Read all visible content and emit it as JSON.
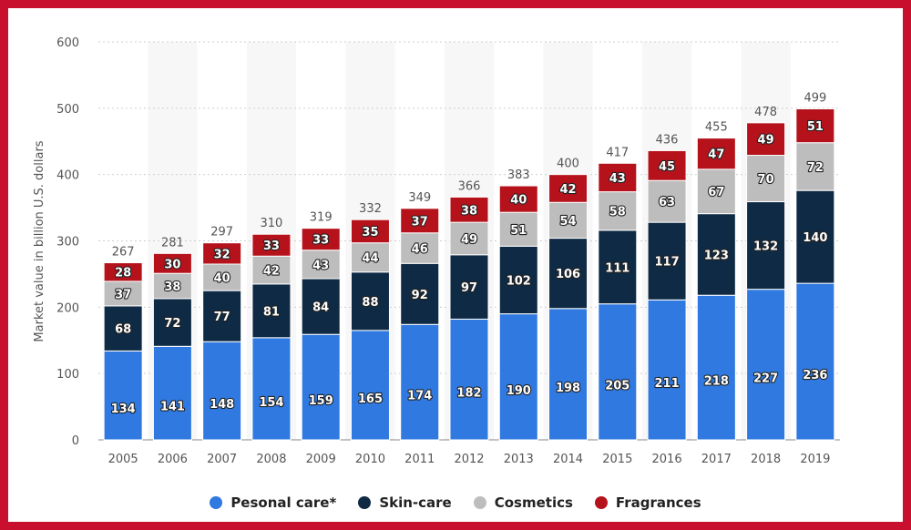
{
  "chart_data": {
    "type": "bar",
    "stacked": true,
    "categories": [
      "2005",
      "2006",
      "2007",
      "2008",
      "2009",
      "2010",
      "2011",
      "2012",
      "2013",
      "2014",
      "2015",
      "2016",
      "2017",
      "2018",
      "2019"
    ],
    "series": [
      {
        "name": "Pesonal care*",
        "color": "#2f79e0",
        "values": [
          134,
          141,
          148,
          154,
          159,
          165,
          174,
          182,
          190,
          198,
          205,
          211,
          218,
          227,
          236
        ]
      },
      {
        "name": "Skin-care",
        "color": "#0f2a44",
        "values": [
          68,
          72,
          77,
          81,
          84,
          88,
          92,
          97,
          102,
          106,
          111,
          117,
          123,
          132,
          140
        ]
      },
      {
        "name": "Cosmetics",
        "color": "#bdbdbd",
        "values": [
          37,
          38,
          40,
          42,
          43,
          44,
          46,
          49,
          51,
          54,
          58,
          63,
          67,
          70,
          72
        ]
      },
      {
        "name": "Fragrances",
        "color": "#b5121b",
        "values": [
          28,
          30,
          32,
          33,
          33,
          35,
          37,
          38,
          40,
          42,
          43,
          45,
          47,
          49,
          51
        ]
      }
    ],
    "totals": [
      "267",
      "281",
      "297",
      "310",
      "319",
      "332",
      "349",
      "366",
      "383",
      "400",
      "417",
      "436",
      "455",
      "478",
      "499"
    ],
    "ylabel": "Market value in billion U.S. dollars",
    "xlabel": "",
    "ylim": [
      0,
      600
    ],
    "yticks": [
      "0",
      "100",
      "200",
      "300",
      "400",
      "500",
      "600"
    ],
    "grid": true,
    "legend_position": "bottom"
  }
}
